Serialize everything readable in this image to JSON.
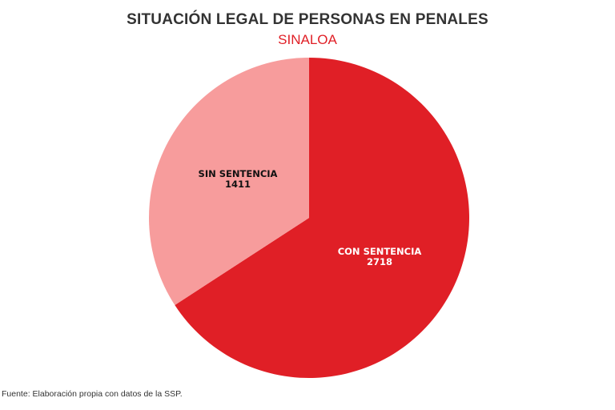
{
  "title": "SITUACIÓN LEGAL DE PERSONAS EN PENALES",
  "subtitle": "SINALOA",
  "source": "Fuente: Elaboración propia con datos de la SSP.",
  "chart_data": {
    "type": "pie",
    "title": "SITUACIÓN LEGAL DE PERSONAS EN PENALES",
    "subtitle": "SINALOA",
    "slices": [
      {
        "label": "CON SENTENCIA",
        "value": 2718,
        "color": "#e01f26",
        "text_color": "#ffffff"
      },
      {
        "label": "SIN SENTENCIA",
        "value": 1411,
        "color": "#f79c9c",
        "text_color": "#111111"
      }
    ],
    "start": "12 o'clock",
    "direction": "clockwise",
    "legend": "none"
  }
}
